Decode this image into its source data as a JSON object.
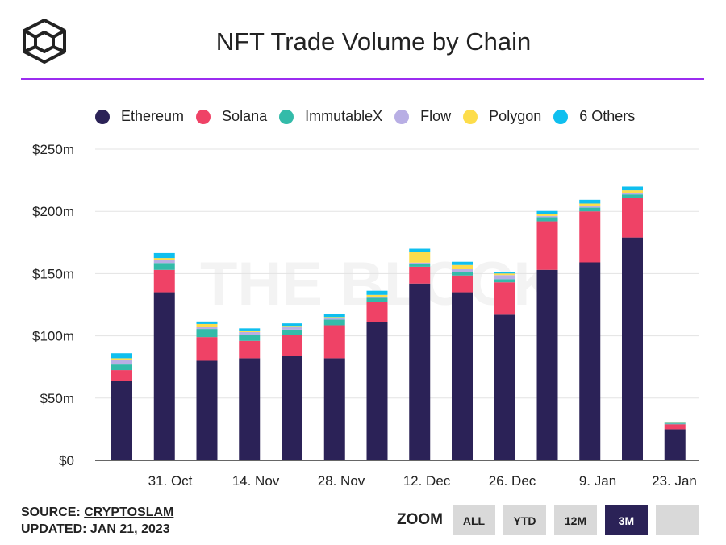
{
  "title": "NFT Trade Volume by Chain",
  "watermark": "THE BLOCK",
  "source_label": "SOURCE:",
  "source_value": "CRYPTOSLAM",
  "updated": "UPDATED: JAN 21, 2023",
  "zoom": {
    "label": "ZOOM",
    "buttons": [
      "ALL",
      "YTD",
      "12M",
      "3M",
      ""
    ],
    "active": "3M"
  },
  "chart_data": {
    "type": "bar",
    "stacked": true,
    "title": "NFT Trade Volume by Chain",
    "ylim": [
      0,
      250
    ],
    "yticks": [
      "$0",
      "$50m",
      "$100m",
      "$150m",
      "$200m",
      "$250m"
    ],
    "ytick_values": [
      0,
      50,
      100,
      150,
      200,
      250
    ],
    "xticks": [
      "31. Oct",
      "14. Nov",
      "28. Nov",
      "12. Dec",
      "26. Dec",
      "9. Jan",
      "23. Jan"
    ],
    "legend_position": "top",
    "grid": true,
    "series": [
      {
        "name": "Ethereum",
        "color": "#2b2257",
        "values": [
          64,
          135,
          80,
          82,
          84,
          82,
          111,
          142,
          135,
          117,
          153,
          159,
          179,
          25
        ]
      },
      {
        "name": "Solana",
        "color": "#ef4266",
        "values": [
          8.5,
          18,
          19,
          14,
          17,
          26.5,
          16,
          13.5,
          13.5,
          26,
          39,
          41,
          32,
          4
        ]
      },
      {
        "name": "ImmutableX",
        "color": "#33bba9",
        "values": [
          4.5,
          5.5,
          6.5,
          4.5,
          4,
          4.5,
          3.5,
          2,
          3,
          2.5,
          3.3,
          3,
          2.6,
          0.7
        ]
      },
      {
        "name": "Flow",
        "color": "#b8aee4",
        "values": [
          4,
          2.5,
          2,
          2.5,
          2,
          1.5,
          1,
          1.3,
          2,
          3.3,
          1,
          1.3,
          1.3,
          0.3
        ]
      },
      {
        "name": "Polygon",
        "color": "#fddd4b",
        "values": [
          1,
          1.5,
          2,
          1.3,
          1,
          0.6,
          1.4,
          8.5,
          3.4,
          1.3,
          1.5,
          2,
          2,
          0.2
        ]
      },
      {
        "name": "6 Others",
        "color": "#0fbfef",
        "values": [
          4,
          4,
          2,
          1.7,
          2,
          2.4,
          3.3,
          2.7,
          2.6,
          1.2,
          2.5,
          3,
          3,
          0.3
        ]
      }
    ]
  }
}
